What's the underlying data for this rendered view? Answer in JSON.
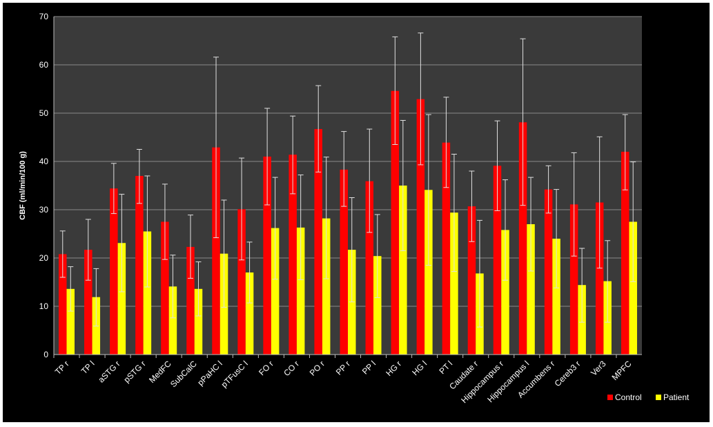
{
  "chart_data": {
    "type": "bar",
    "title": "",
    "xlabel": "",
    "ylabel": "CBF (ml/min/100 g)",
    "ylim": [
      0,
      70
    ],
    "yticks": [
      0,
      10,
      20,
      30,
      40,
      50,
      60,
      70
    ],
    "grid": true,
    "legend_position": "bottom-right",
    "categories": [
      "TP r",
      "TP l",
      "aSTG r",
      "pSTG r",
      "MedFC",
      "SubCalC",
      "pPaHC l",
      "pTFusC l",
      "FO r",
      "CO r",
      "PO r",
      "PP r",
      "PP l",
      "HG r",
      "HG l",
      "PT l",
      "Caudate r",
      "Hippocampus r",
      "Hippocampus l",
      "Accumbens r",
      "Cereb3 r",
      "Ver3",
      "MPFC"
    ],
    "series": [
      {
        "name": "Control",
        "color": "#ff0000",
        "values": [
          20.8,
          21.7,
          34.4,
          37.0,
          27.5,
          22.3,
          42.9,
          30.1,
          41.0,
          41.4,
          46.7,
          38.3,
          35.9,
          54.6,
          52.9,
          43.9,
          30.7,
          39.1,
          48.1,
          34.2,
          31.1,
          31.5,
          42.0
        ],
        "err_low": [
          16.0,
          15.4,
          29.2,
          31.3,
          19.7,
          15.8,
          24.2,
          19.6,
          31.0,
          33.3,
          37.8,
          30.7,
          25.3,
          43.5,
          39.3,
          34.6,
          23.4,
          29.8,
          30.9,
          29.3,
          20.4,
          17.9,
          34.1
        ],
        "err_high": [
          25.6,
          28.0,
          39.6,
          42.5,
          35.3,
          28.9,
          61.6,
          40.7,
          51.0,
          49.4,
          55.7,
          46.2,
          46.7,
          65.8,
          66.6,
          53.3,
          38.0,
          48.4,
          65.4,
          39.1,
          41.8,
          45.1,
          49.7
        ]
      },
      {
        "name": "Patient",
        "color": "#ffff00",
        "values": [
          13.6,
          11.9,
          23.1,
          25.5,
          14.1,
          13.6,
          20.9,
          17.0,
          26.2,
          26.3,
          28.2,
          21.7,
          20.4,
          35.0,
          34.1,
          29.4,
          16.8,
          25.8,
          27.0,
          24.0,
          14.4,
          15.2,
          27.5
        ],
        "err_low": [
          9.0,
          5.9,
          13.0,
          14.0,
          7.6,
          8.0,
          9.8,
          10.7,
          15.6,
          15.5,
          15.7,
          10.9,
          11.8,
          21.5,
          18.5,
          17.2,
          5.7,
          15.4,
          17.3,
          13.8,
          6.7,
          6.7,
          15.1
        ],
        "err_high": [
          18.2,
          17.8,
          33.2,
          37.0,
          20.6,
          19.2,
          32.0,
          23.3,
          36.7,
          37.2,
          40.9,
          32.5,
          29.0,
          48.5,
          49.7,
          41.5,
          27.8,
          36.2,
          36.7,
          34.2,
          22.0,
          23.6,
          39.9
        ]
      }
    ]
  }
}
